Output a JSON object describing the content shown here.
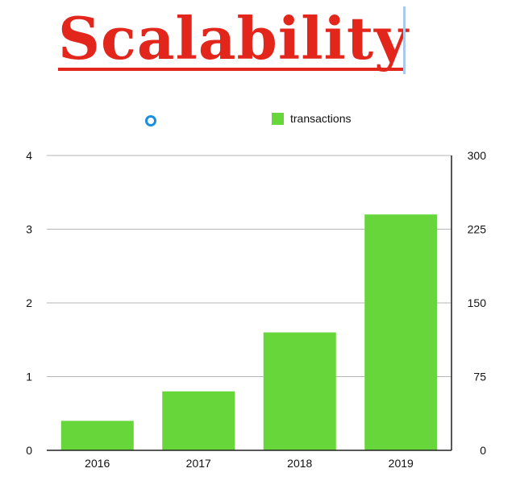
{
  "title": "Scalability",
  "legend": [
    {
      "name": "",
      "marker": "circle",
      "color": "#1a8fe0"
    },
    {
      "name": "transactions",
      "marker": "square",
      "color": "#66d63a"
    }
  ],
  "chart_data": {
    "type": "bar",
    "categories": [
      "2016",
      "2017",
      "2018",
      "2019"
    ],
    "series": [
      {
        "name": "transactions",
        "values": [
          0.4,
          0.8,
          1.6,
          3.2
        ],
        "color": "#66d63a",
        "axis": "left"
      }
    ],
    "left_axis": {
      "ylim": [
        0,
        4
      ],
      "ticks": [
        "0",
        "1",
        "2",
        "3",
        "4"
      ]
    },
    "right_axis": {
      "ylim": [
        0,
        300
      ],
      "ticks": [
        "0",
        "75",
        "150",
        "225",
        "300"
      ]
    },
    "grid": true,
    "legend_position": "top"
  }
}
